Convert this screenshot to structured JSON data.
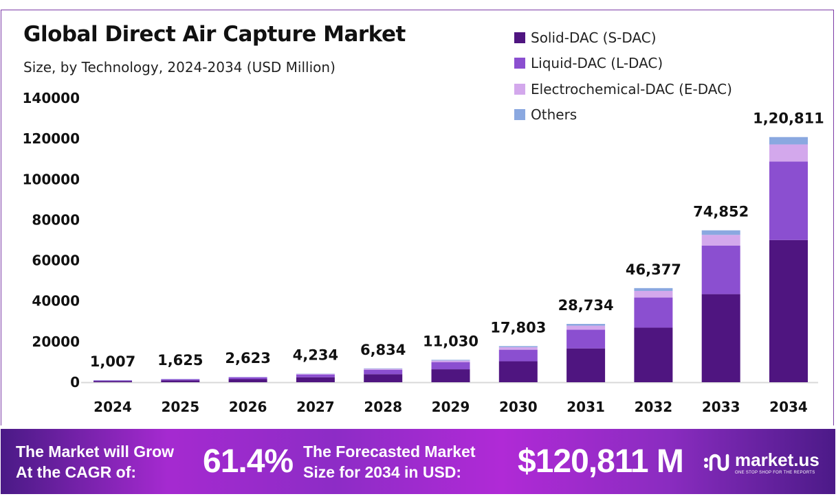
{
  "chart_data": {
    "type": "bar",
    "stacked": true,
    "title": "Global Direct Air Capture Market",
    "subtitle": "Size, by Technology, 2024-2034 (USD Million)",
    "xlabel": "",
    "ylabel": "",
    "ylim": [
      0,
      140000
    ],
    "yticks": [
      "0",
      "20000",
      "40000",
      "60000",
      "80000",
      "100000",
      "120000",
      "140000"
    ],
    "grid": false,
    "legend_position": "top-right",
    "categories": [
      "2024",
      "2025",
      "2026",
      "2027",
      "2028",
      "2029",
      "2030",
      "2031",
      "2032",
      "2033",
      "2034"
    ],
    "totals": [
      1007,
      1625,
      2623,
      4234,
      6834,
      11030,
      17803,
      28734,
      46377,
      74852,
      120811
    ],
    "total_labels": [
      "1,007",
      "1,625",
      "2,623",
      "4,234",
      "6,834",
      "11,030",
      "17,803",
      "28,734",
      "46,377",
      "74,852",
      "1,20,811"
    ],
    "series": [
      {
        "name": "Solid-DAC (S-DAC)",
        "color": "#4f1580",
        "values": [
          584,
          943,
          1521,
          2456,
          3964,
          6397,
          10326,
          16666,
          26899,
          43414,
          70070
        ]
      },
      {
        "name": "Liquid-DAC (L-DAC)",
        "color": "#8b4fd0",
        "values": [
          322,
          520,
          839,
          1355,
          2187,
          3530,
          5697,
          9195,
          14841,
          23953,
          38660
        ]
      },
      {
        "name": "Electrochemical-DAC (E-DAC)",
        "color": "#d3a8ec",
        "values": [
          70,
          114,
          184,
          296,
          478,
          772,
          1246,
          2011,
          3246,
          5240,
          8457
        ]
      },
      {
        "name": "Others",
        "color": "#8aa8e0",
        "values": [
          31,
          48,
          79,
          127,
          205,
          331,
          534,
          862,
          1391,
          2245,
          3624
        ]
      }
    ]
  },
  "footer": {
    "cagr_line1": "The Market will Grow",
    "cagr_line2": "At the CAGR of:",
    "cagr_value": "61.4%",
    "forecast_line1": "The Forecasted Market",
    "forecast_line2": "Size for 2034 in USD:",
    "forecast_value": "$120,811 M",
    "logo_text": "market.us",
    "logo_tagline": "ONE STOP SHOP FOR THE REPORTS"
  }
}
